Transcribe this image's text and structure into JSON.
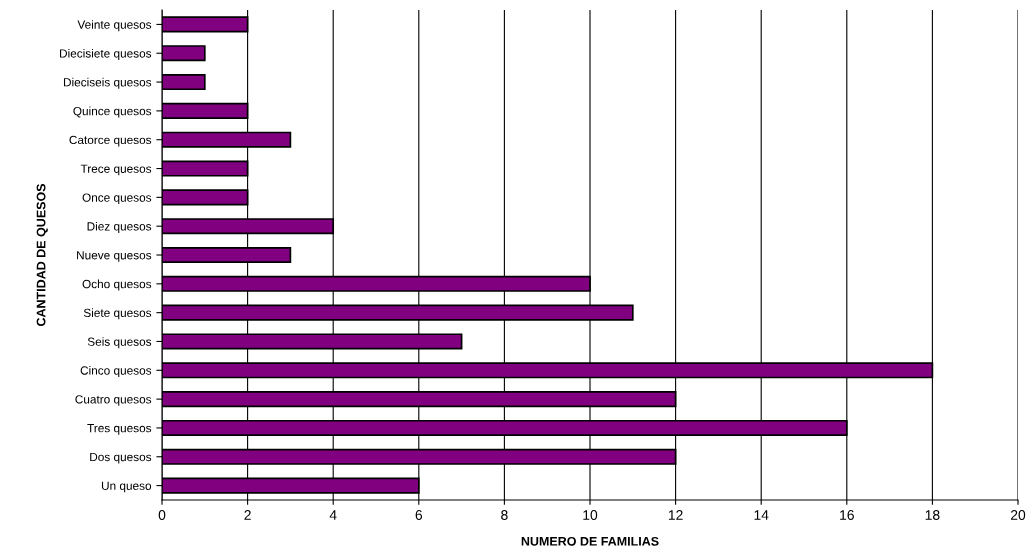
{
  "chart_data": {
    "type": "bar",
    "orientation": "horizontal",
    "xlabel": "NUMERO DE FAMILIAS",
    "ylabel": "CANTIDAD DE QUESOS",
    "categories": [
      "Veinte quesos",
      "Diecisiete quesos",
      "Dieciseis quesos",
      "Quince quesos",
      "Catorce quesos",
      "Trece quesos",
      "Once quesos",
      "Diez quesos",
      "Nueve quesos",
      "Ocho quesos",
      "Siete quesos",
      "Seis quesos",
      "Cinco quesos",
      "Cuatro quesos",
      "Tres quesos",
      "Dos quesos",
      "Un queso"
    ],
    "values": [
      2,
      1,
      1,
      2,
      3,
      2,
      2,
      4,
      3,
      10,
      11,
      7,
      18,
      12,
      16,
      12,
      6
    ],
    "color": "#800080",
    "xlim": [
      0,
      20
    ],
    "xticks": [
      0,
      2,
      4,
      6,
      8,
      10,
      12,
      14,
      16,
      18,
      20
    ],
    "grid": "x"
  }
}
